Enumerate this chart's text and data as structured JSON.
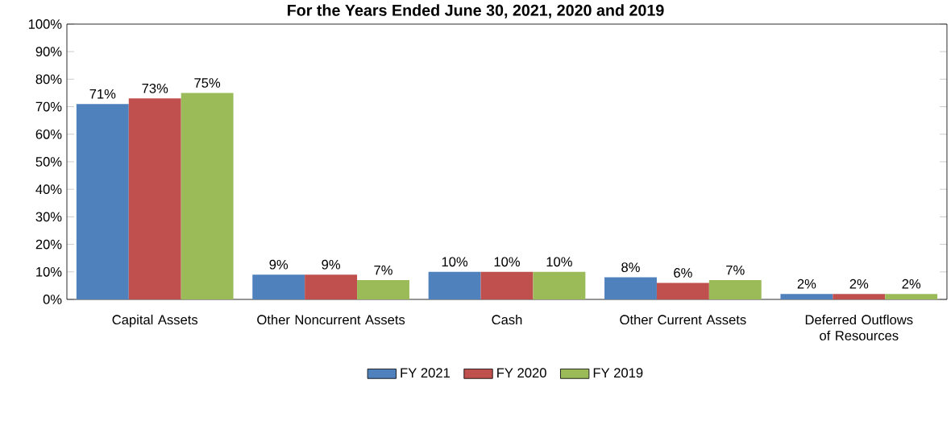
{
  "chart_data": {
    "type": "bar",
    "title": "For the Years Ended June 30, 2021, 2020 and 2019",
    "categories": [
      "Capital Assets",
      "Other Noncurrent Assets",
      "Cash",
      "Other Current Assets",
      "Deferred Outflows of Resources"
    ],
    "series": [
      {
        "name": "FY 2021",
        "color": "#4f81bd",
        "values": [
          71,
          9,
          10,
          8,
          2
        ],
        "value_labels": [
          "71%",
          "9%",
          "10%",
          "8%",
          "2%"
        ]
      },
      {
        "name": "FY 2020",
        "color": "#c0504d",
        "values": [
          73,
          9,
          10,
          6,
          2
        ],
        "value_labels": [
          "73%",
          "9%",
          "10%",
          "6%",
          "2%"
        ]
      },
      {
        "name": "FY 2019",
        "color": "#9bbb59",
        "values": [
          75,
          7,
          10,
          7,
          2
        ],
        "value_labels": [
          "75%",
          "7%",
          "10%",
          "7%",
          "2%"
        ]
      }
    ],
    "ylim": [
      0,
      100
    ],
    "yticks": [
      {
        "value": 0,
        "label": "0%"
      },
      {
        "value": 10,
        "label": "10%"
      },
      {
        "value": 20,
        "label": "20%"
      },
      {
        "value": 30,
        "label": "30%"
      },
      {
        "value": 40,
        "label": "40%"
      },
      {
        "value": 50,
        "label": "50%"
      },
      {
        "value": 60,
        "label": "60%"
      },
      {
        "value": 70,
        "label": "70%"
      },
      {
        "value": 80,
        "label": "80%"
      },
      {
        "value": 90,
        "label": "90%"
      },
      {
        "value": 100,
        "label": "100%"
      }
    ],
    "legend": "bottom"
  }
}
